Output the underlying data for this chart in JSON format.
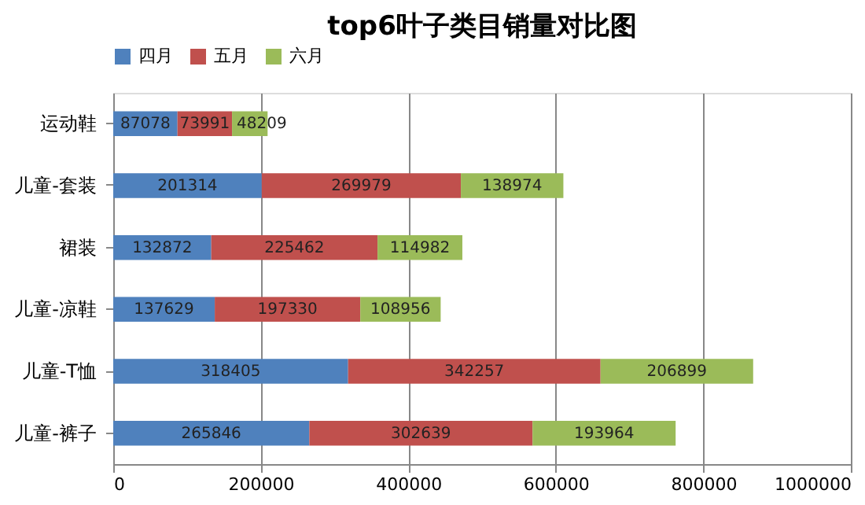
{
  "chart_data": {
    "type": "bar",
    "orientation": "horizontal",
    "stacked": true,
    "title": "top6叶子类目销量对比图",
    "categories": [
      "运动鞋",
      "儿童-套装",
      "裙装",
      "儿童-凉鞋",
      "儿童-T恤",
      "儿童-裤子"
    ],
    "series": [
      {
        "name": "四月",
        "color": "#4f81bd",
        "values": [
          87078,
          201314,
          132872,
          137629,
          318405,
          265846
        ]
      },
      {
        "name": "五月",
        "color": "#c0504d",
        "values": [
          73991,
          269979,
          225462,
          197330,
          342257,
          302639
        ]
      },
      {
        "name": "六月",
        "color": "#9bbb59",
        "values": [
          48209,
          138974,
          114982,
          108956,
          206899,
          193964
        ]
      }
    ],
    "xlim": [
      0,
      1000000
    ],
    "xticks": [
      0,
      200000,
      400000,
      600000,
      800000,
      1000000
    ],
    "grid": "x",
    "legend": "top",
    "data_labels": true
  }
}
